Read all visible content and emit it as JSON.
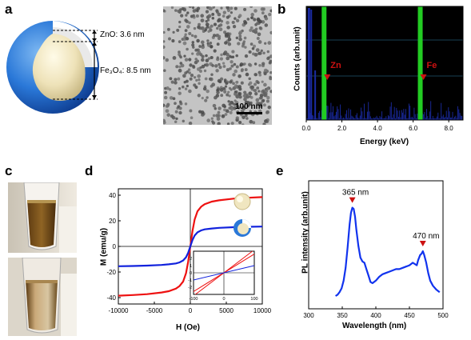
{
  "panels": {
    "a": {
      "letter": "a",
      "zno_label": "ZnO: 3.6 nm",
      "fe3o4_label": "Fe₃O₄: 8.5 nm",
      "scalebar_label": "100 nm"
    },
    "b": {
      "letter": "b",
      "ylabel": "Counts (arb.unit)",
      "xlabel": "Energy (keV)",
      "peak_zn": "Zn",
      "peak_fe": "Fe"
    },
    "c": {
      "letter": "c"
    },
    "d": {
      "letter": "d",
      "ylabel": "M (emu/g)",
      "xlabel": "H (Oe)"
    },
    "e": {
      "letter": "e",
      "ylabel": "PL intensity (arb.unit)",
      "xlabel": "Wavelength (nm)",
      "peak1_label": "365 nm",
      "peak2_label": "470 nm"
    }
  },
  "chart_data": [
    {
      "panel": "b",
      "type": "bar",
      "title": "",
      "xlabel": "Energy (keV)",
      "ylabel": "Counts (arb.unit)",
      "xlim": [
        0,
        8.8
      ],
      "xticks": [
        0.0,
        2.0,
        4.0,
        6.0,
        8.0
      ],
      "xtick_labels": [
        "0.0",
        "2.0",
        "4.0",
        "6.0",
        "8.0"
      ],
      "highlight_lines_keV": [
        1.0,
        6.4
      ],
      "highlight_color": "#22cc22",
      "annotations": [
        {
          "text": "Zn",
          "x": 1.0
        },
        {
          "text": "Fe",
          "x": 6.4
        }
      ],
      "background_color": "#000000",
      "bar_color": "#1a2aa0"
    },
    {
      "panel": "d",
      "type": "line",
      "title": "",
      "xlabel": "H (Oe)",
      "ylabel": "M (emu/g)",
      "xlim": [
        -10000,
        10000
      ],
      "ylim": [
        -45,
        45
      ],
      "xticks": [
        -10000,
        -5000,
        0,
        5000,
        10000
      ],
      "xtick_labels": [
        "-10000",
        "-5000",
        "0",
        "5000",
        "10000"
      ],
      "yticks": [
        -40,
        -20,
        0,
        20,
        40
      ],
      "ytick_labels": [
        "-40",
        "-20",
        "0",
        "20",
        "40"
      ],
      "series": [
        {
          "color": "#ee1111",
          "x": [
            -10000,
            -8000,
            -6000,
            -4000,
            -3000,
            -2000,
            -1500,
            -1000,
            -600,
            -300,
            0,
            300,
            600,
            1000,
            1500,
            2000,
            3000,
            4000,
            6000,
            8000,
            10000
          ],
          "y": [
            -38.5,
            -38,
            -37.3,
            -36,
            -35,
            -33,
            -31,
            -27.5,
            -21,
            -12,
            0,
            12,
            21,
            27.5,
            31,
            33,
            35,
            36,
            37.3,
            38,
            38.5
          ]
        },
        {
          "color": "#1122dd",
          "x": [
            -10000,
            -8000,
            -6000,
            -4000,
            -3000,
            -2000,
            -1500,
            -1000,
            -600,
            -300,
            0,
            300,
            600,
            1000,
            1500,
            2000,
            3000,
            4000,
            6000,
            8000,
            10000
          ],
          "y": [
            -15.5,
            -15.3,
            -15,
            -14.5,
            -14,
            -13.3,
            -12.5,
            -11,
            -8.5,
            -5,
            0,
            5,
            8.5,
            11,
            12.5,
            13.3,
            14,
            14.5,
            15,
            15.3,
            15.5
          ]
        }
      ],
      "inset": {
        "xlim": [
          -100,
          100
        ],
        "ylim": [
          -3,
          3
        ],
        "xticks": [
          -100,
          0,
          100
        ],
        "xtick_labels": [
          "-100",
          "0",
          "100"
        ],
        "yticks": [
          -2,
          -1,
          0,
          1,
          2
        ],
        "ytick_labels": [
          "-2",
          "-1",
          "0",
          "1",
          "2"
        ],
        "series": [
          {
            "color": "#ee1111",
            "x": [
              -100,
              100
            ],
            "y": [
              -2.6,
              2.6
            ]
          },
          {
            "color": "#ee1111",
            "x": [
              -100,
              100
            ],
            "y": [
              -3.2,
              3.2
            ]
          },
          {
            "color": "#1122dd",
            "x": [
              -100,
              100
            ],
            "y": [
              -1.0,
              1.0
            ]
          }
        ]
      }
    },
    {
      "panel": "e",
      "type": "line",
      "title": "",
      "xlabel": "Wavelength (nm)",
      "ylabel": "PL intensity (arb.unit)",
      "xlim": [
        300,
        500
      ],
      "xticks": [
        300,
        350,
        400,
        450,
        500
      ],
      "xtick_labels": [
        "300",
        "350",
        "400",
        "450",
        "500"
      ],
      "series": [
        {
          "color": "#1133ee",
          "x": [
            340,
            343,
            346,
            349,
            352,
            355,
            358,
            361,
            363,
            365,
            367,
            369,
            371,
            374,
            377,
            380,
            383,
            386,
            389,
            392,
            395,
            400,
            405,
            410,
            415,
            420,
            425,
            430,
            435,
            440,
            445,
            450,
            455,
            458,
            461,
            463,
            466,
            468,
            470,
            472,
            475,
            478,
            481,
            485,
            490,
            495
          ],
          "y": [
            0.1,
            0.11,
            0.13,
            0.16,
            0.22,
            0.32,
            0.48,
            0.66,
            0.75,
            0.79,
            0.78,
            0.72,
            0.62,
            0.49,
            0.4,
            0.37,
            0.36,
            0.31,
            0.26,
            0.21,
            0.2,
            0.22,
            0.25,
            0.27,
            0.28,
            0.29,
            0.3,
            0.31,
            0.31,
            0.32,
            0.33,
            0.34,
            0.36,
            0.35,
            0.34,
            0.38,
            0.42,
            0.43,
            0.45,
            0.42,
            0.36,
            0.28,
            0.22,
            0.18,
            0.15,
            0.13
          ]
        }
      ],
      "annotations": [
        {
          "text": "365 nm",
          "x": 365
        },
        {
          "text": "470 nm",
          "x": 470
        }
      ]
    }
  ]
}
